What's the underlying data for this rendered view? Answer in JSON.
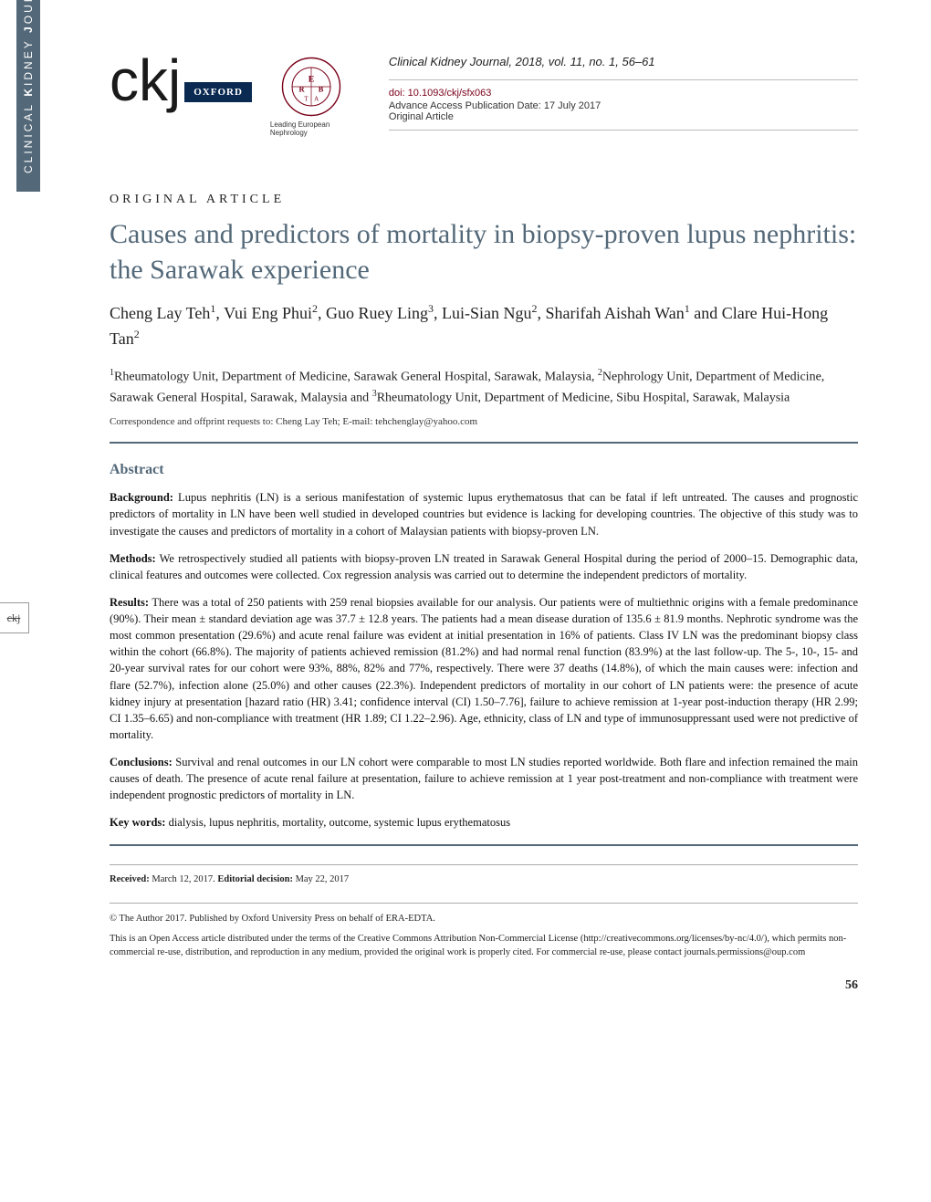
{
  "sidebar": {
    "journal_thin": "CLINICAL",
    "journal_bold_k": " K",
    "journal_thin2": "IDNEY",
    "journal_bold_j": " J",
    "journal_thin3": "OURNAL",
    "icon_label": "ckj"
  },
  "header": {
    "ckj_logo_text": "ckj",
    "oxford_label": "OXFORD",
    "era_caption": "Leading European Nephrology",
    "citation": "Clinical Kidney Journal, 2018, vol. 11, no. 1, 56–61",
    "doi": "doi: 10.1093/ckj/sfx063",
    "pubdate": "Advance Access Publication Date: 17 July 2017",
    "article_type": "Original Article"
  },
  "article": {
    "section_label": "ORIGINAL ARTICLE",
    "title": "Causes and predictors of mortality in biopsy-proven lupus nephritis: the Sarawak experience",
    "authors_html": "Cheng Lay Teh<sup>1</sup>, Vui Eng Phui<sup>2</sup>, Guo Ruey Ling<sup>3</sup>, Lui-Sian Ngu<sup>2</sup>, Sharifah Aishah Wan<sup>1</sup> and Clare Hui-Hong Tan<sup>2</sup>",
    "affiliations_html": "<sup>1</sup>Rheumatology Unit, Department of Medicine, Sarawak General Hospital, Sarawak, Malaysia, <sup>2</sup>Nephrology Unit, Department of Medicine, Sarawak General Hospital, Sarawak, Malaysia and <sup>3</sup>Rheumatology Unit, Department of Medicine, Sibu Hospital, Sarawak, Malaysia",
    "correspondence": "Correspondence and offprint requests to: Cheng Lay Teh; E-mail: tehchenglay@yahoo.com"
  },
  "abstract": {
    "heading": "Abstract",
    "background_label": "Background:",
    "background": " Lupus nephritis (LN) is a serious manifestation of systemic lupus erythematosus that can be fatal if left untreated. The causes and prognostic predictors of mortality in LN have been well studied in developed countries but evidence is lacking for developing countries. The objective of this study was to investigate the causes and predictors of mortality in a cohort of Malaysian patients with biopsy-proven LN.",
    "methods_label": "Methods:",
    "methods": " We retrospectively studied all patients with biopsy-proven LN treated in Sarawak General Hospital during the period of 2000–15. Demographic data, clinical features and outcomes were collected. Cox regression analysis was carried out to determine the independent predictors of mortality.",
    "results_label": "Results:",
    "results": " There was a total of 250 patients with 259 renal biopsies available for our analysis. Our patients were of multiethnic origins with a female predominance (90%). Their mean ± standard deviation age was 37.7 ± 12.8 years. The patients had a mean disease duration of 135.6 ± 81.9 months. Nephrotic syndrome was the most common presentation (29.6%) and acute renal failure was evident at initial presentation in 16% of patients. Class IV LN was the predominant biopsy class within the cohort (66.8%). The majority of patients achieved remission (81.2%) and had normal renal function (83.9%) at the last follow-up. The 5-, 10-, 15- and 20-year survival rates for our cohort were 93%, 88%, 82% and 77%, respectively. There were 37 deaths (14.8%), of which the main causes were: infection and flare (52.7%), infection alone (25.0%) and other causes (22.3%). Independent predictors of mortality in our cohort of LN patients were: the presence of acute kidney injury at presentation [hazard ratio (HR) 3.41; confidence interval (CI) 1.50–7.76], failure to achieve remission at 1-year post-induction therapy (HR 2.99; CI 1.35–6.65) and non-compliance with treatment (HR 1.89; CI 1.22–2.96). Age, ethnicity, class of LN and type of immunosuppressant used were not predictive of mortality.",
    "conclusions_label": "Conclusions:",
    "conclusions": " Survival and renal outcomes in our LN cohort were comparable to most LN studies reported worldwide. Both flare and infection remained the main causes of death. The presence of acute renal failure at presentation, failure to achieve remission at 1 year post-treatment and non-compliance with treatment were independent prognostic predictors of mortality in LN.",
    "keywords_label": "Key words:",
    "keywords": " dialysis, lupus nephritis, mortality, outcome, systemic lupus erythematosus"
  },
  "footer": {
    "received_label": "Received:",
    "received_date": " March 12, 2017. ",
    "editorial_label": "Editorial decision:",
    "editorial_date": " May 22, 2017",
    "copyright": "© The Author 2017. Published by Oxford University Press on behalf of ERA-EDTA.",
    "license": "This is an Open Access article distributed under the terms of the Creative Commons Attribution Non-Commercial License (http://creativecommons.org/licenses/by-nc/4.0/), which permits non-commercial re-use, distribution, and reproduction in any medium, provided the original work is properly cited. For commercial re-use, please contact journals.permissions@oup.com",
    "page_number": "56"
  },
  "colors": {
    "accent": "#536878",
    "oxford_blue": "#0a2a52",
    "doi_red": "#7a0019",
    "text": "#111111",
    "rule_light": "#bbbbbb"
  }
}
